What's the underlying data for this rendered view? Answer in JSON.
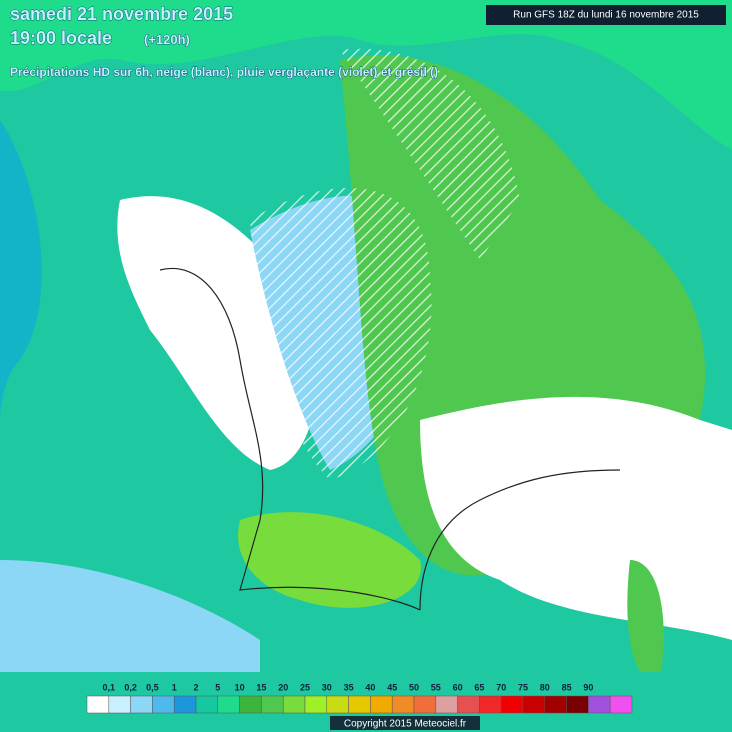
{
  "header": {
    "date": "samedi 21 novembre 2015",
    "time": "19:00 locale",
    "lead": "(+120h)",
    "description": "Précipitations HD sur 6h, neige (blanc), pluie verglaçante (violet) et grésil ()",
    "run": "Run GFS 18Z du lundi 16 novembre 2015"
  },
  "legend": {
    "ticks": [
      {
        "value": 0.1,
        "label": "0,1"
      },
      {
        "value": 0.2,
        "label": "0,2"
      },
      {
        "value": 0.5,
        "label": "0,5"
      },
      1,
      2,
      5,
      10,
      15,
      20,
      25,
      30,
      35,
      40,
      45,
      50,
      55,
      60,
      65,
      70,
      75,
      80,
      85,
      90
    ],
    "colors": [
      "#ffffff",
      "#c8f0ff",
      "#8cd7f5",
      "#50b9eb",
      "#1e96dc",
      "#14c8a0",
      "#1edc8c",
      "#3cb43c",
      "#50c850",
      "#78dc3c",
      "#a0f028",
      "#c8dc14",
      "#e6c800",
      "#f0aa00",
      "#f08c28",
      "#f06e3c",
      "#dca0a0",
      "#e65050",
      "#f02828",
      "#f00000",
      "#c80000",
      "#a00000",
      "#780000",
      "#a050dc",
      "#f050f0"
    ]
  },
  "footer": {
    "copyright": "Copyright 2015 Meteociel.fr"
  }
}
